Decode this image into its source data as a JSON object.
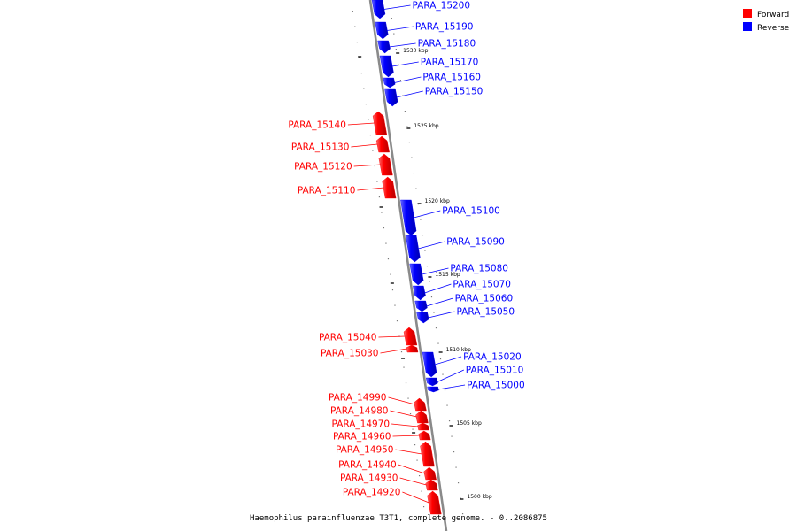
{
  "colors": {
    "forward": "#ff0000",
    "reverse": "#0000ff",
    "backbone": "#888888"
  },
  "legend": [
    {
      "key": "forward",
      "label": "Forward",
      "color": "#ff0000"
    },
    {
      "key": "reverse",
      "label": "Reverse",
      "color": "#0000ff"
    }
  ],
  "caption": "Haemophilus parainfluenzae T3T1, complete genome. - 0..2086875",
  "ticks": [
    "1530 kbp",
    "1525 kbp",
    "1520 kbp",
    "1515 kbp",
    "1510 kbp",
    "1505 kbp",
    "1500 kbp"
  ],
  "genes": [
    {
      "name": "PARA_15200",
      "strand": "reverse"
    },
    {
      "name": "PARA_15190",
      "strand": "reverse"
    },
    {
      "name": "PARA_15180",
      "strand": "reverse"
    },
    {
      "name": "PARA_15170",
      "strand": "reverse"
    },
    {
      "name": "PARA_15160",
      "strand": "reverse"
    },
    {
      "name": "PARA_15150",
      "strand": "reverse"
    },
    {
      "name": "PARA_15140",
      "strand": "forward"
    },
    {
      "name": "PARA_15130",
      "strand": "forward"
    },
    {
      "name": "PARA_15120",
      "strand": "forward"
    },
    {
      "name": "PARA_15110",
      "strand": "forward"
    },
    {
      "name": "PARA_15100",
      "strand": "reverse"
    },
    {
      "name": "PARA_15090",
      "strand": "reverse"
    },
    {
      "name": "PARA_15080",
      "strand": "reverse"
    },
    {
      "name": "PARA_15070",
      "strand": "reverse"
    },
    {
      "name": "PARA_15060",
      "strand": "reverse"
    },
    {
      "name": "PARA_15050",
      "strand": "reverse"
    },
    {
      "name": "PARA_15040",
      "strand": "forward"
    },
    {
      "name": "PARA_15030",
      "strand": "forward"
    },
    {
      "name": "PARA_15020",
      "strand": "reverse"
    },
    {
      "name": "PARA_15010",
      "strand": "reverse"
    },
    {
      "name": "PARA_15000",
      "strand": "reverse"
    },
    {
      "name": "PARA_14990",
      "strand": "forward"
    },
    {
      "name": "PARA_14980",
      "strand": "forward"
    },
    {
      "name": "PARA_14970",
      "strand": "forward"
    },
    {
      "name": "PARA_14960",
      "strand": "forward"
    },
    {
      "name": "PARA_14950",
      "strand": "forward"
    },
    {
      "name": "PARA_14940",
      "strand": "forward"
    },
    {
      "name": "PARA_14930",
      "strand": "forward"
    },
    {
      "name": "PARA_14920",
      "strand": "forward"
    }
  ]
}
